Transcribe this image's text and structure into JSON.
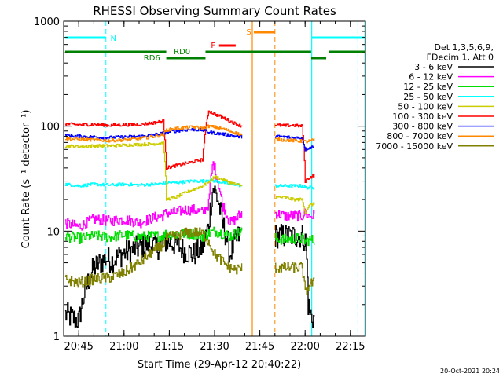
{
  "chart_data": {
    "type": "line",
    "title": "RHESSI Observing Summary Count Rates",
    "xlabel": "Start Time (29-Apr-12 20:40:22)",
    "ylabel": "Count Rate (s⁻¹ detector⁻¹)",
    "y_scale": "log",
    "ylim": [
      1,
      1000
    ],
    "xlim_minutes_after_2040": [
      0,
      100
    ],
    "x_ticks": [
      {
        "t": 5,
        "label": "20:45"
      },
      {
        "t": 20,
        "label": "21:00"
      },
      {
        "t": 35,
        "label": "21:15"
      },
      {
        "t": 50,
        "label": "21:30"
      },
      {
        "t": 65,
        "label": "21:45"
      },
      {
        "t": 80,
        "label": "22:00"
      },
      {
        "t": 95,
        "label": "22:15"
      }
    ],
    "y_ticks": [
      {
        "v": 1,
        "label": "1"
      },
      {
        "v": 10,
        "label": "10"
      },
      {
        "v": 100,
        "label": "100"
      },
      {
        "v": 1000,
        "label": "1000"
      }
    ],
    "legend_header": [
      "Det 1,3,5,6,9,",
      "FDecim 1, Att 0"
    ],
    "legend_position": "right",
    "series": [
      {
        "name": "3 - 6 keV",
        "color": "#000000",
        "x": [
          0.5,
          5,
          10,
          14,
          16,
          19,
          22,
          25,
          28,
          31,
          34,
          37,
          40,
          43,
          46,
          48,
          49.5,
          51,
          52.5,
          55,
          57,
          59,
          70,
          73,
          76,
          79,
          80,
          81,
          82,
          83
        ],
        "y": [
          1.6,
          1.4,
          4.5,
          5.5,
          5.2,
          6,
          6.5,
          7,
          7.5,
          7,
          8,
          7.5,
          6.5,
          6,
          7,
          11,
          26,
          20,
          12,
          6,
          8,
          10,
          9,
          9,
          9,
          9,
          8,
          2,
          1.5,
          1.5
        ]
      },
      {
        "name": "6 - 12 keV",
        "color": "#ff00ff",
        "x": [
          0.5,
          5,
          10,
          15,
          20,
          25,
          30,
          33,
          34,
          37,
          40,
          43,
          46,
          48,
          49.5,
          51,
          52.5,
          55,
          57,
          59,
          70,
          73,
          76,
          79,
          80,
          81,
          82,
          83
        ],
        "y": [
          12,
          11,
          13,
          12.5,
          13,
          12,
          13.5,
          14,
          15,
          15,
          16,
          16,
          15,
          18,
          45,
          30,
          18,
          12,
          13,
          15,
          15,
          14,
          14,
          14,
          15,
          14,
          14,
          14
        ]
      },
      {
        "name": "12 - 25 keV",
        "color": "#00dd00",
        "x": [
          0.5,
          5,
          10,
          15,
          20,
          25,
          30,
          33,
          34,
          37,
          40,
          43,
          46,
          48,
          50,
          53,
          55,
          57,
          59,
          70,
          73,
          76,
          79,
          80,
          81,
          82,
          83
        ],
        "y": [
          9,
          8.5,
          9,
          8.8,
          9.2,
          8.8,
          9,
          9,
          9.5,
          9.3,
          9.5,
          9.5,
          9,
          9.5,
          10,
          9.5,
          9,
          9.5,
          10,
          8.5,
          8.3,
          8.5,
          8.5,
          8,
          8.2,
          8.3,
          8
        ]
      },
      {
        "name": "25 - 50 keV",
        "color": "#00ffff",
        "x": [
          0.5,
          5,
          10,
          15,
          20,
          25,
          30,
          33,
          34,
          37,
          40,
          43,
          46,
          48,
          50,
          53,
          55,
          57,
          59,
          70,
          73,
          76,
          79,
          80,
          81,
          82,
          83
        ],
        "y": [
          28,
          27,
          28,
          27.5,
          28,
          27.5,
          28,
          28.5,
          29,
          29,
          29.5,
          30,
          30,
          31,
          30,
          29,
          28,
          28,
          27,
          27,
          27,
          27,
          27,
          26,
          26,
          26,
          26
        ]
      },
      {
        "name": "50 - 100 keV",
        "color": "#cccc00",
        "x": [
          0.5,
          5,
          10,
          15,
          20,
          25,
          30,
          33,
          34,
          37,
          40,
          43,
          46,
          48,
          50,
          53,
          55,
          57,
          59,
          70,
          73,
          76,
          79,
          80,
          81,
          82,
          83
        ],
        "y": [
          65,
          64,
          65,
          65,
          66,
          67,
          68,
          70,
          20,
          21,
          23,
          25,
          27,
          29,
          33,
          31,
          29,
          28,
          27,
          21,
          21,
          20,
          20,
          15,
          17,
          18,
          18
        ]
      },
      {
        "name": "100 - 300 keV",
        "color": "#ff0000",
        "x": [
          0.5,
          5,
          10,
          15,
          20,
          25,
          30,
          33,
          34,
          37,
          40,
          43,
          46,
          48,
          50,
          53,
          55,
          57,
          59,
          70,
          73,
          76,
          79,
          80,
          81,
          82,
          83
        ],
        "y": [
          105,
          103,
          104,
          102,
          103,
          104,
          108,
          112,
          40,
          42,
          44,
          46,
          48,
          140,
          130,
          120,
          112,
          105,
          100,
          103,
          101,
          102,
          100,
          30,
          32,
          33,
          34
        ]
      },
      {
        "name": "300 - 800 keV",
        "color": "#0000ff",
        "x": [
          0.5,
          5,
          10,
          15,
          20,
          25,
          30,
          33,
          34,
          37,
          40,
          43,
          46,
          48,
          50,
          53,
          55,
          57,
          59,
          70,
          73,
          76,
          79,
          80,
          81,
          82,
          83
        ],
        "y": [
          82,
          80,
          79,
          78,
          79,
          80,
          83,
          86,
          88,
          90,
          92,
          93,
          92,
          88,
          86,
          84,
          82,
          80,
          79,
          80,
          79,
          78,
          77,
          60,
          62,
          63,
          64
        ]
      },
      {
        "name": "800 - 7000 keV",
        "color": "#ff8800",
        "x": [
          0.5,
          5,
          10,
          15,
          20,
          25,
          30,
          33,
          34,
          37,
          40,
          43,
          46,
          48,
          50,
          53,
          55,
          57,
          59,
          70,
          73,
          76,
          79,
          80,
          81,
          82,
          83
        ],
        "y": [
          76,
          75,
          74,
          73,
          74,
          76,
          80,
          83,
          92,
          95,
          97,
          98,
          96,
          100,
          98,
          94,
          90,
          86,
          83,
          75,
          74,
          73,
          72,
          71,
          72,
          73,
          74
        ]
      },
      {
        "name": "7000 - 15000 keV",
        "color": "#808000",
        "x": [
          0.5,
          5,
          10,
          15,
          20,
          25,
          30,
          33,
          34,
          37,
          40,
          43,
          46,
          48,
          50,
          53,
          55,
          57,
          59,
          70,
          73,
          76,
          79,
          80,
          81,
          82,
          83
        ],
        "y": [
          3.5,
          3.2,
          3.5,
          3.6,
          4,
          5,
          6.5,
          7.5,
          8.5,
          9,
          9.5,
          9.8,
          9.5,
          8,
          6,
          5,
          4.5,
          4.3,
          4.5,
          4.5,
          4.5,
          4.5,
          4.5,
          2.5,
          3,
          3.2,
          3.2
        ]
      }
    ],
    "annotations": [
      {
        "label": "N",
        "color": "#00ffff"
      },
      {
        "label": "RD0",
        "color": "#008000"
      },
      {
        "label": "RD6",
        "color": "#008000"
      },
      {
        "label": "F",
        "color": "#ff0000"
      },
      {
        "label": "S",
        "color": "#ff8800"
      }
    ],
    "timestamp": "20-Oct-2021 20:24"
  }
}
